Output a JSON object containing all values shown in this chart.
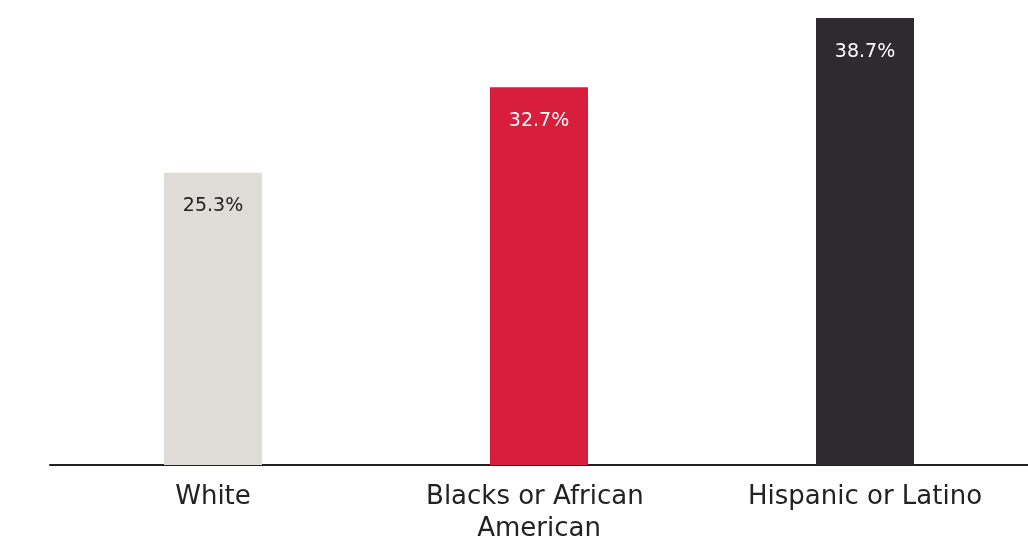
{
  "chart_data": {
    "type": "bar",
    "categories": [
      "White",
      "Blacks or African American",
      "Hispanic or Latino"
    ],
    "values": [
      25.3,
      32.7,
      38.7
    ],
    "colors": [
      "#e0dcd8",
      "#d81e3c",
      "#2d2b30"
    ],
    "value_labels": [
      "25.3%",
      "32.7%",
      "38.7%"
    ]
  }
}
